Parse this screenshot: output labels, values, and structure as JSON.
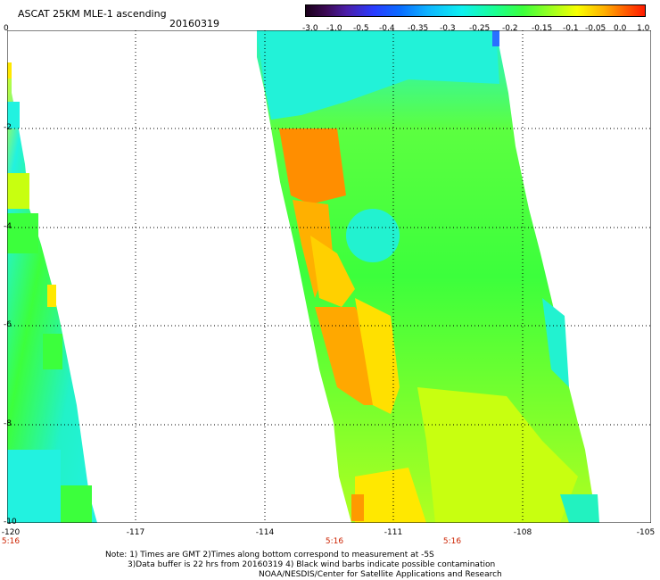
{
  "header": {
    "title": "ASCAT 25KM MLE-1 ascending",
    "date": "20160319"
  },
  "colorbar": {
    "labels": [
      "-3.0",
      "-1.0",
      "-0.5",
      "-0.4",
      "-0.35",
      "-0.3",
      "-0.25",
      "-0.2",
      "-0.15",
      "-0.1",
      "-0.05",
      "0.0",
      "1.0"
    ]
  },
  "axes": {
    "y_ticks": [
      "0",
      "-2",
      "-4",
      "-6",
      "-8",
      "-10"
    ],
    "x_ticks": [
      "-120",
      "-117",
      "-114",
      "-111",
      "-108",
      "-105"
    ],
    "time_labels": [
      "5:16",
      "5:16",
      "5:16"
    ]
  },
  "notes": {
    "line1": "Note: 1) Times are GMT 2)Times along bottom correspond to measurement at -5S",
    "line2": "3)Data buffer is 22 hrs from 20160319 4) Black wind barbs indicate possible contamination",
    "line3": "NOAA/NESDIS/Center for Satellite Applications and Research"
  },
  "colors": {
    "cyan": "#22f2e0",
    "green": "#3cff3c",
    "yellow_green": "#c8ff10",
    "yellow": "#ffe800",
    "orange": "#ff9a00",
    "deep_orange": "#ff7a00"
  }
}
